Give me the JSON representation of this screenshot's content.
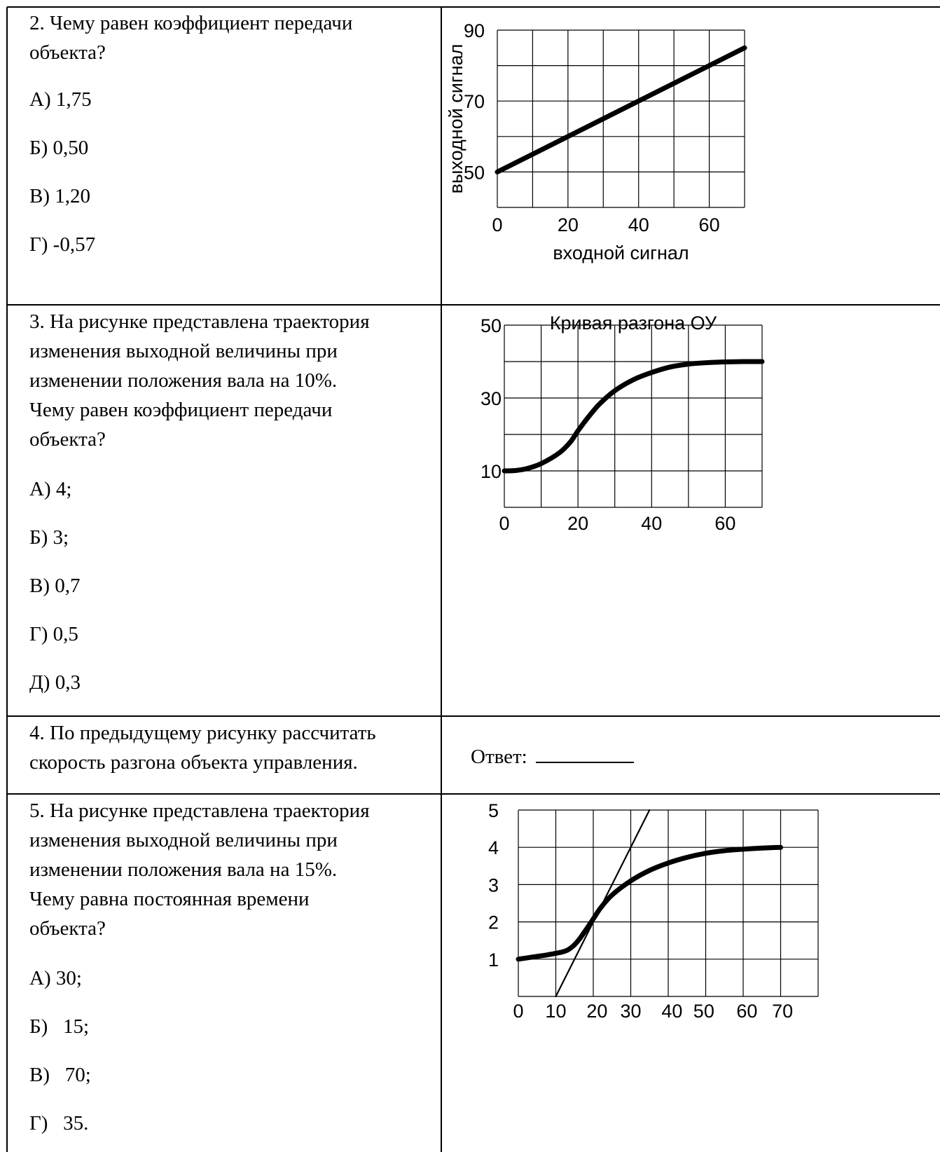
{
  "q2": {
    "question": [
      "2. Чему равен коэффициент передачи",
      "объекта?"
    ],
    "options": [
      "А) 1,75",
      "Б) 0,50",
      "В) 1,20",
      "Г) -0,57"
    ]
  },
  "q3": {
    "question": [
      "3. На рисунке представлена траектория",
      "изменения выходной величины при",
      "изменении положения вала на 10%.",
      "Чему равен коэффициент передачи",
      "объекта?"
    ],
    "options": [
      "А) 4;",
      "Б) 3;",
      "В) 0,7",
      "Г) 0,5",
      "Д) 0,3"
    ]
  },
  "q4": {
    "question": [
      "4. По предыдущему рисунку рассчитать",
      "скорость разгона объекта управления."
    ],
    "answer_label": "Ответ:"
  },
  "q5": {
    "question": [
      "5. На рисунке представлена траектория",
      "изменения выходной величины при",
      "изменении положения вала на 15%.",
      "Чему равна постоянная времени",
      "объекта?"
    ],
    "options": [
      "А) 30;",
      "Б)   15;",
      "В)   70;",
      "Г)   35."
    ]
  },
  "chart_data": [
    {
      "type": "line",
      "title": "",
      "xlabel": "входной сигнал",
      "ylabel": "выходной сигнал",
      "xlim": [
        0,
        70
      ],
      "ylim": [
        40,
        90
      ],
      "xticks": [
        0,
        20,
        40,
        60
      ],
      "yticks": [
        50,
        70,
        90
      ],
      "grid": true,
      "series": [
        {
          "x": [
            0,
            70
          ],
          "y": [
            50,
            85
          ]
        }
      ]
    },
    {
      "type": "line",
      "title": "Кривая разгона ОУ",
      "xlabel": "",
      "ylabel": "",
      "xlim": [
        0,
        70
      ],
      "ylim": [
        0,
        50
      ],
      "xticks": [
        0,
        20,
        40,
        60
      ],
      "yticks": [
        10,
        30,
        50
      ],
      "grid": true,
      "series": [
        {
          "x": [
            0,
            3,
            6,
            10,
            15,
            18,
            20,
            23,
            26,
            30,
            35,
            40,
            45,
            50,
            55,
            60,
            65,
            70
          ],
          "y": [
            10,
            10.1,
            10.6,
            12,
            15,
            18,
            21,
            25,
            28.5,
            32,
            35,
            37,
            38.5,
            39.3,
            39.7,
            39.9,
            40,
            40
          ]
        }
      ]
    },
    {
      "type": "line",
      "title": "",
      "xlabel": "",
      "ylabel": "",
      "xlim": [
        0,
        80
      ],
      "ylim": [
        0,
        5
      ],
      "xtick_labels": [
        "0",
        "10",
        "20",
        "30",
        "40",
        "50",
        "60",
        "70"
      ],
      "yticks": [
        1,
        2,
        3,
        4,
        5
      ],
      "grid": true,
      "series": [
        {
          "x": [
            0,
            4,
            8,
            12,
            14,
            16,
            18,
            20,
            22,
            25,
            30,
            35,
            40,
            45,
            50,
            55,
            60,
            65,
            70
          ],
          "y": [
            1,
            1.06,
            1.12,
            1.2,
            1.3,
            1.5,
            1.78,
            2.08,
            2.38,
            2.72,
            3.1,
            3.38,
            3.58,
            3.73,
            3.84,
            3.91,
            3.95,
            3.98,
            4
          ]
        },
        {
          "x": [
            10,
            35
          ],
          "y": [
            0,
            5
          ]
        }
      ]
    }
  ]
}
